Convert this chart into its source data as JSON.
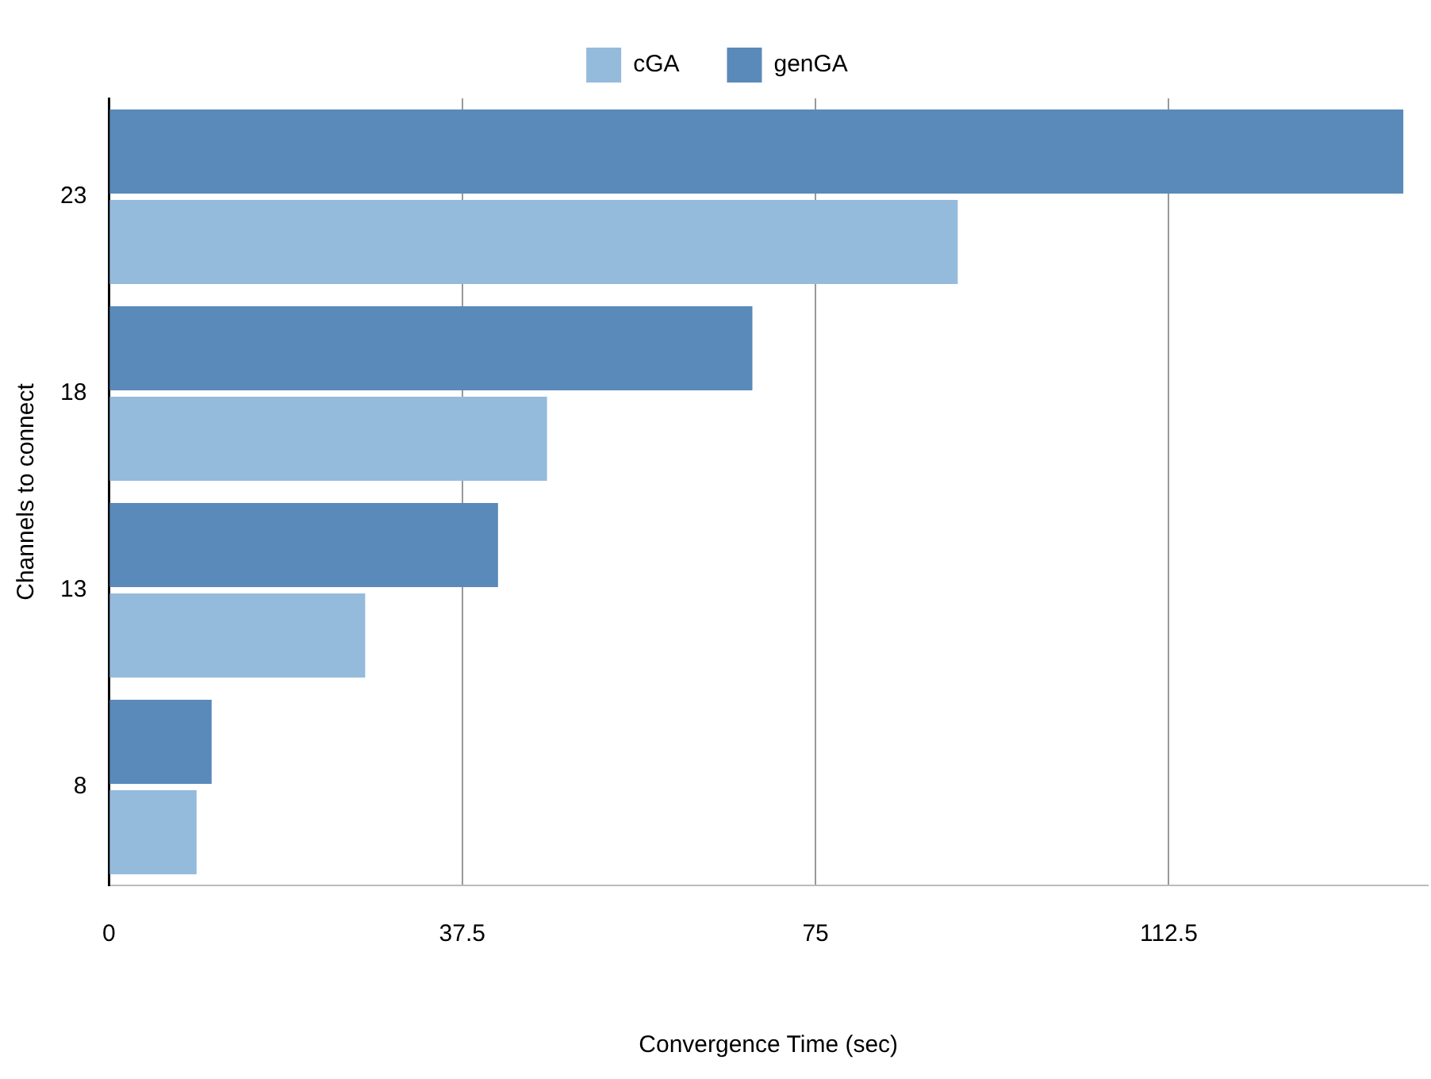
{
  "chart_data": {
    "type": "bar",
    "orientation": "horizontal",
    "xlabel": "Convergence Time (sec)",
    "ylabel": "Channels to connect",
    "categories": [
      "23",
      "18",
      "13",
      "8"
    ],
    "series": [
      {
        "name": "cGA",
        "color": "#94bbdc",
        "values": [
          90.1,
          46.5,
          27.2,
          9.3
        ]
      },
      {
        "name": "genGA",
        "color": "#5a8ab9",
        "values": [
          137.4,
          68.3,
          41.3,
          10.9
        ]
      }
    ],
    "xlim": [
      0,
      140
    ],
    "xticks": [
      0,
      37.5,
      75,
      112.5
    ],
    "grid": "x",
    "legend": "top"
  }
}
